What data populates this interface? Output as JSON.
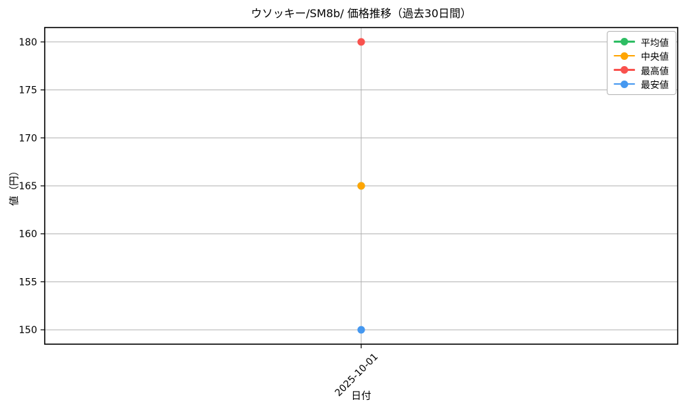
{
  "chart_data": {
    "type": "line",
    "title": "ウソッキー/SM8b/ 価格推移（過去30日間）",
    "xlabel": "日付",
    "ylabel": "値（円）",
    "x": [
      "2025-10-01"
    ],
    "series": [
      {
        "name": "平均値",
        "color": "#2ebd63",
        "values": [
          165
        ]
      },
      {
        "name": "中央値",
        "color": "#ffa502",
        "values": [
          165
        ]
      },
      {
        "name": "最高値",
        "color": "#f9524e",
        "values": [
          180
        ]
      },
      {
        "name": "最安値",
        "color": "#4598f0",
        "values": [
          150
        ]
      }
    ],
    "yticks": [
      150,
      155,
      160,
      165,
      170,
      175,
      180
    ],
    "ylim": [
      148.5,
      181.5
    ],
    "grid": true,
    "legend_position": "upper right",
    "note": "平均値 (green) marker coincides with 中央値 at 165 and is hidden beneath the orange marker",
    "colors": {
      "grid": "#b0b0b0",
      "axis": "#000000",
      "background": "#ffffff"
    }
  }
}
